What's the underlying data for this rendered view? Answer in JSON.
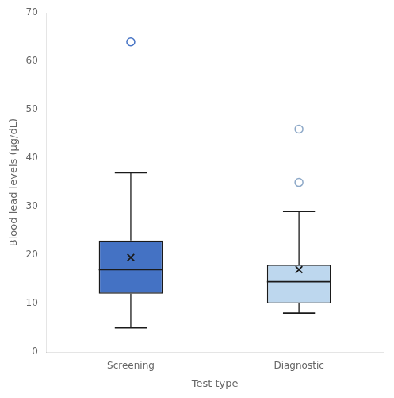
{
  "chart_data": {
    "type": "box",
    "categories": [
      "Screening",
      "Diagnostic"
    ],
    "boxes": [
      {
        "q1": 12,
        "median": 17,
        "q3": 23,
        "mean": 19.5,
        "whisker_low": 5,
        "whisker_high": 37,
        "outliers": [
          64
        ],
        "color": "#4472C4",
        "outlier_color": "#4472C4"
      },
      {
        "q1": 10,
        "median": 14.5,
        "q3": 18,
        "mean": 17,
        "whisker_low": 8,
        "whisker_high": 29,
        "outliers": [
          35,
          46
        ],
        "color": "#BDD7EE",
        "outlier_color": "#8EA9C8"
      }
    ],
    "edge_color": "#1a1a1a",
    "marker": "x",
    "xlabel": "Test type",
    "ylabel": "Blood lead levels (μg/dL)",
    "ylim": [
      0,
      70
    ],
    "yticks": [
      0,
      10,
      20,
      30,
      40,
      50,
      60,
      70
    ],
    "grid": false
  }
}
